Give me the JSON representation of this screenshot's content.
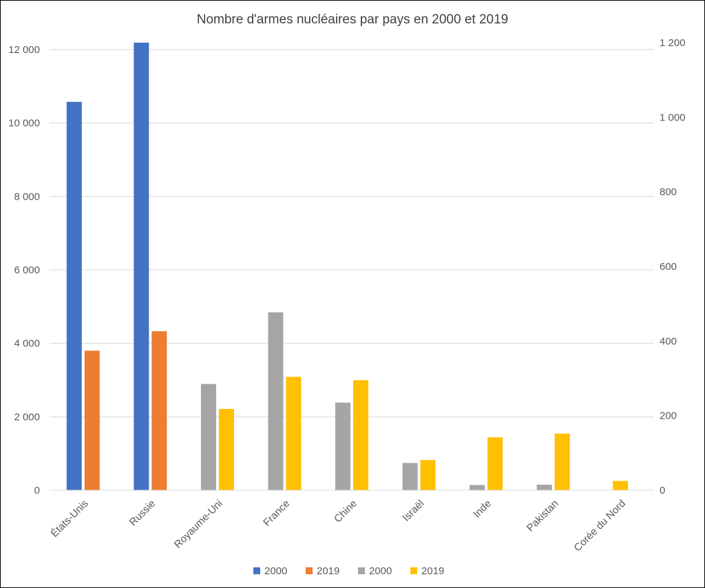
{
  "chart_data": {
    "type": "bar",
    "title": "Nombre d'armes nucléaires par pays en 2000 et 2019",
    "categories": [
      "États-Unis",
      "Russie",
      "Royaume-Uni",
      "France",
      "Chine",
      "Israël",
      "Inde",
      "Pakistan",
      "Corée du Nord"
    ],
    "series": [
      {
        "name": "2000",
        "axis": "primary",
        "color": "#4472c4",
        "values": [
          10577,
          12188,
          null,
          null,
          null,
          null,
          null,
          null,
          null
        ]
      },
      {
        "name": "2019",
        "axis": "primary",
        "color": "#ed7d31",
        "values": [
          3800,
          4330,
          null,
          null,
          null,
          null,
          null,
          null,
          null
        ]
      },
      {
        "name": "2000",
        "axis": "secondary",
        "color": "#a5a5a5",
        "values": [
          null,
          null,
          285,
          477,
          235,
          73,
          14,
          15,
          null
        ]
      },
      {
        "name": "2019",
        "axis": "secondary",
        "color": "#ffc000",
        "values": [
          null,
          null,
          218,
          304,
          295,
          81,
          142,
          152,
          25
        ]
      }
    ],
    "ylim": [
      0,
      12000
    ],
    "y_ticks": [
      "0",
      "2 000",
      "4 000",
      "6 000",
      "8 000",
      "10 000",
      "12 000"
    ],
    "y_tick_values": [
      0,
      2000,
      4000,
      6000,
      8000,
      10000,
      12000
    ],
    "y2lim": [
      0,
      1200
    ],
    "y2_ticks": [
      "0",
      "200",
      "400",
      "600",
      "800",
      "1 000",
      "1 200"
    ],
    "y2_tick_values": [
      0,
      200,
      400,
      600,
      800,
      1000,
      1200
    ],
    "grid": true,
    "legend_position": "bottom"
  }
}
